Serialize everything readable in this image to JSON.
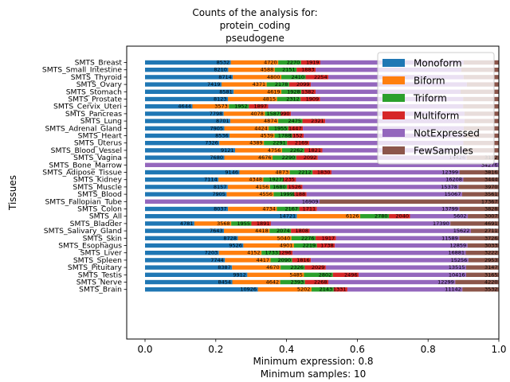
{
  "chart_data": {
    "type": "bar",
    "orientation": "horizontal",
    "stacked": true,
    "normalized": true,
    "title_lines": [
      "Counts of the analysis for:",
      "protein_coding",
      "pseudogene"
    ],
    "xlabel_lines": [
      "Minimum expression: 0.8",
      "Minimum samples: 10"
    ],
    "ylabel": "Tissues",
    "xlim": [
      0,
      1
    ],
    "xticks": [
      "0.0",
      "0.2",
      "0.4",
      "0.6",
      "0.8",
      "1.0"
    ],
    "grid": false,
    "legend_position": "top-right",
    "categories": [
      "SMTS_Breast",
      "SMTS_Small_Intestine",
      "SMTS_Thyroid",
      "SMTS_Ovary",
      "SMTS_Stomach",
      "SMTS_Prostate",
      "SMTS_Cervix_Uteri",
      "SMTS_Pancreas",
      "SMTS_Lung",
      "SMTS_Adrenal_Gland",
      "SMTS_Heart",
      "SMTS_Uterus",
      "SMTS_Blood_Vessel",
      "SMTS_Vagina",
      "SMTS_Bone_Marrow",
      "SMTS_Adipose_Tissue",
      "SMTS_Kidney",
      "SMTS_Muscle",
      "SMTS_Blood",
      "SMTS_Fallopian_Tube",
      "SMTS_Colon",
      "SMTS_All",
      "SMTS_Bladder",
      "SMTS_Salivary_Gland",
      "SMTS_Skin",
      "SMTS_Esophagus",
      "SMTS_Liver",
      "SMTS_Spleen",
      "SMTS_Pituitary",
      "SMTS_Testis",
      "SMTS_Nerve",
      "SMTS_Brain"
    ],
    "series": [
      {
        "name": "Monoform",
        "color": "#1f77b4",
        "values": [
          8532,
          8210,
          8714,
          7419,
          8581,
          8123,
          4644,
          7798,
          8701,
          7905,
          8536,
          7326,
          9121,
          7680,
          0,
          9146,
          7114,
          8157,
          7905,
          0,
          8037,
          14721,
          4781,
          7643,
          8728,
          9526,
          7203,
          7744,
          8387,
          9912,
          8454,
          10926
        ]
      },
      {
        "name": "Biform",
        "color": "#ff7f0e",
        "values": [
          4720,
          4588,
          4800,
          4371,
          4619,
          4815,
          3573,
          4078,
          4874,
          4424,
          4539,
          4389,
          4756,
          4676,
          0,
          4873,
          4348,
          4156,
          4556,
          0,
          4734,
          6126,
          3568,
          4418,
          5040,
          4901,
          4152,
          4417,
          4670,
          5485,
          4642,
          5202
        ]
      },
      {
        "name": "Triform",
        "color": "#2ca02c",
        "values": [
          2270,
          2151,
          2410,
          2178,
          1928,
          2312,
          1952,
          1587,
          2475,
          1955,
          1788,
          2291,
          2262,
          2290,
          0,
          2212,
          1927,
          1680,
          1999,
          0,
          2167,
          2780,
          1955,
          2074,
          2276,
          2219,
          1733,
          2090,
          2326,
          2802,
          2393,
          2143
        ]
      },
      {
        "name": "Multiform",
        "color": "#d62728",
        "values": [
          1919,
          1883,
          2254,
          2099,
          1382,
          1909,
          1897,
          990,
          2321,
          1447,
          1152,
          2169,
          1821,
          2092,
          0,
          1830,
          1235,
          1526,
          1188,
          0,
          1711,
          2040,
          1891,
          1808,
          1917,
          1738,
          1296,
          1816,
          2029,
          2496,
          2268,
          1331
        ]
      },
      {
        "name": "NotExpressed",
        "color": "#9467bd",
        "values": [
          14260,
          14370,
          13400,
          15120,
          14037,
          14020,
          19100,
          17200,
          14200,
          16030,
          16200,
          15200,
          14380,
          14426,
          34276,
          12399,
          16208,
          15378,
          15067,
          16909,
          13799,
          5602,
          17390,
          15622,
          11589,
          12859,
          16881,
          15256,
          13515,
          10416,
          12299,
          11142
        ]
      },
      {
        "name": "FewSamples",
        "color": "#8c564b",
        "values": [
          3500,
          3700,
          3500,
          3100,
          3700,
          3500,
          3500,
          3400,
          3500,
          3500,
          3500,
          3500,
          3500,
          3112,
          0,
          3816,
          3444,
          3970,
          3561,
          17367,
          3828,
          3007,
          4691,
          2711,
          3726,
          3033,
          3222,
          2953,
          3147,
          3165,
          4220,
          3532
        ]
      }
    ],
    "labels": [
      [
        "8532",
        "4720",
        "2270",
        "1919",
        "",
        ""
      ],
      [
        "8210",
        "4588",
        "2151",
        "1883",
        "",
        ""
      ],
      [
        "8714",
        "4800",
        "2410",
        "2254",
        "",
        ""
      ],
      [
        "7419",
        "4371",
        "2178",
        "2099",
        "",
        ""
      ],
      [
        "8581",
        "4619",
        "1928",
        "1382",
        "",
        ""
      ],
      [
        "8123",
        "4815",
        "2312",
        "1909",
        "",
        ""
      ],
      [
        "4644",
        "3573",
        "1952",
        "1897",
        "",
        ""
      ],
      [
        "7798",
        "4078",
        "1587",
        "990",
        "",
        ""
      ],
      [
        "8701",
        "4874",
        "2475",
        "2321",
        "",
        ""
      ],
      [
        "7905",
        "4424",
        "1955",
        "1447",
        "",
        ""
      ],
      [
        "8536",
        "4539",
        "1788",
        "1152",
        "",
        ""
      ],
      [
        "7326",
        "4389",
        "2291",
        "2169",
        "",
        ""
      ],
      [
        "9121",
        "4756",
        "2262",
        "1821",
        "",
        ""
      ],
      [
        "7680",
        "4676",
        "2290",
        "2092",
        "14426",
        "3112"
      ],
      [
        "",
        "",
        "",
        "",
        "34276",
        ""
      ],
      [
        "9146",
        "4873",
        "2212",
        "1830",
        "12399",
        "3816"
      ],
      [
        "7114",
        "4348",
        "1927",
        "1235",
        "16208",
        "3444"
      ],
      [
        "8157",
        "4156",
        "1680",
        "1526",
        "15378",
        "3970"
      ],
      [
        "7905",
        "4556",
        "1999",
        "1188",
        "15067",
        "3561"
      ],
      [
        "",
        "",
        "",
        "",
        "16909",
        "17367"
      ],
      [
        "8037",
        "4734",
        "2167",
        "1711",
        "13799",
        "3828"
      ],
      [
        "14721",
        "6126",
        "2780",
        "2040",
        "5602",
        "3007"
      ],
      [
        "4781",
        "3568",
        "1955",
        "1891",
        "17390",
        "4691"
      ],
      [
        "7643",
        "4418",
        "2074",
        "1808",
        "15622",
        "2711"
      ],
      [
        "8728",
        "5040",
        "2276",
        "1917",
        "11589",
        "3726"
      ],
      [
        "9526",
        "4901",
        "2219",
        "1738",
        "12859",
        "3033"
      ],
      [
        "7203",
        "4152",
        "1733",
        "1296",
        "16881",
        "3222"
      ],
      [
        "7744",
        "4417",
        "2090",
        "1816",
        "15256",
        "2953"
      ],
      [
        "8387",
        "4670",
        "2326",
        "2029",
        "13515",
        "3147"
      ],
      [
        "9912",
        "5485",
        "2802",
        "2496",
        "10416",
        "3165"
      ],
      [
        "8454",
        "4642",
        "2393",
        "2268",
        "12299",
        "4220"
      ],
      [
        "10926",
        "5202",
        "2143",
        "1331",
        "11142",
        "3532"
      ]
    ]
  }
}
